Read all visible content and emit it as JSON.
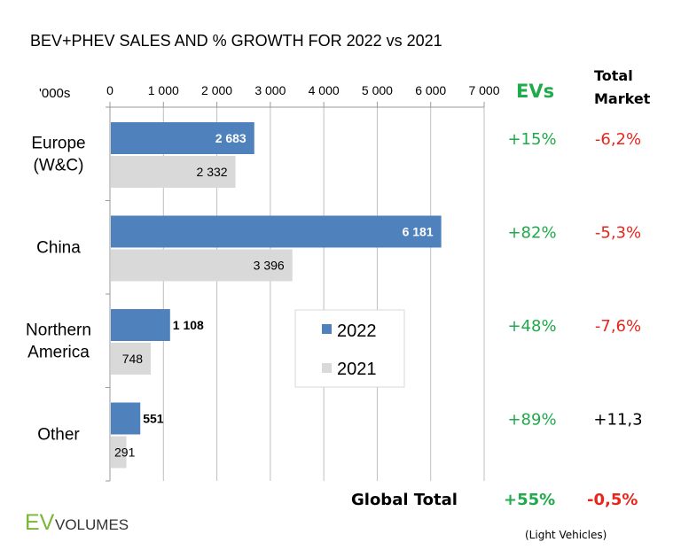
{
  "chart_data": {
    "type": "bar",
    "orientation": "horizontal",
    "title": "BEV+PHEV SALES AND % GROWTH FOR 2022 vs 2021",
    "unit_label": "'000s",
    "xlim": [
      0,
      7000
    ],
    "x_ticks": [
      "0",
      "1 000",
      "2 000",
      "3 000",
      "4 000",
      "5 000",
      "6 000",
      "7 000"
    ],
    "x_tick_values": [
      0,
      1000,
      2000,
      3000,
      4000,
      5000,
      6000,
      7000
    ],
    "grid": "vertical",
    "legend_placement": "center",
    "categories": [
      [
        "Europe",
        "(W&C)"
      ],
      [
        "China"
      ],
      [
        "Northern",
        "America"
      ],
      [
        "Other"
      ]
    ],
    "series": [
      {
        "name": "2022",
        "color": "#4f81bd",
        "values": [
          2683,
          6181,
          1108,
          551
        ],
        "labels": [
          "2 683",
          "6 181",
          "1 108",
          "551"
        ]
      },
      {
        "name": "2021",
        "color": "#d9d9d9",
        "values": [
          2332,
          3396,
          748,
          291
        ],
        "labels": [
          "2 332",
          "3 396",
          "748",
          "291"
        ]
      }
    ],
    "growth_table": {
      "ev_header": "EVs",
      "market_header": [
        "Total",
        "Market"
      ],
      "ev_growth": [
        "+15%",
        "+82%",
        "+48%",
        "+89%"
      ],
      "market_growth": [
        "-6,2%",
        "-5,3%",
        "-7,6%",
        "+11,3"
      ],
      "market_colors": [
        "#e8261c",
        "#e8261c",
        "#e8261c",
        "#000000"
      ],
      "total_label": "Global Total",
      "total_ev": "+55%",
      "total_market": "-0,5%",
      "footnote": "(Light Vehicles)"
    },
    "colors": {
      "positive": "#1faa4b",
      "negative": "#e8261c"
    }
  },
  "logo": {
    "ev": "EV",
    "volumes": "VOLUMES",
    "ev_color": "#7ab734"
  }
}
